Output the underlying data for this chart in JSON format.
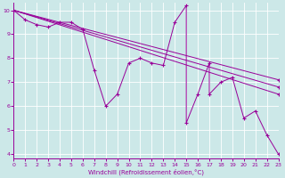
{
  "xlabel": "Windchill (Refroidissement éolien,°C)",
  "line_color": "#990099",
  "bg_color": "#cce8e8",
  "grid_color": "#ffffff",
  "series1": [
    [
      0,
      10.0
    ],
    [
      1,
      9.6
    ],
    [
      2,
      9.4
    ],
    [
      3,
      9.3
    ],
    [
      4,
      9.5
    ],
    [
      5,
      9.5
    ],
    [
      6,
      9.2
    ],
    [
      7,
      7.5
    ],
    [
      8,
      6.0
    ],
    [
      9,
      6.5
    ],
    [
      10,
      7.8
    ],
    [
      11,
      8.0
    ],
    [
      12,
      7.8
    ],
    [
      13,
      7.7
    ],
    [
      14,
      9.5
    ],
    [
      15,
      10.2
    ],
    [
      15,
      5.3
    ],
    [
      16,
      6.5
    ],
    [
      17,
      7.8
    ],
    [
      17,
      6.5
    ],
    [
      18,
      7.0
    ],
    [
      19,
      7.2
    ],
    [
      20,
      5.5
    ],
    [
      21,
      5.8
    ],
    [
      22,
      4.8
    ],
    [
      23,
      4.0
    ]
  ],
  "series2": [
    [
      0,
      10.0
    ],
    [
      23,
      6.5
    ]
  ],
  "series3": [
    [
      0,
      10.0
    ],
    [
      23,
      6.8
    ]
  ],
  "series4": [
    [
      0,
      10.0
    ],
    [
      23,
      7.1
    ]
  ],
  "xlim": [
    0,
    23
  ],
  "ylim": [
    3.8,
    10.3
  ],
  "xticks": [
    0,
    1,
    2,
    3,
    4,
    5,
    6,
    7,
    8,
    9,
    10,
    11,
    12,
    13,
    14,
    15,
    16,
    17,
    18,
    19,
    20,
    21,
    22,
    23
  ],
  "yticks": [
    4,
    5,
    6,
    7,
    8,
    9,
    10
  ]
}
